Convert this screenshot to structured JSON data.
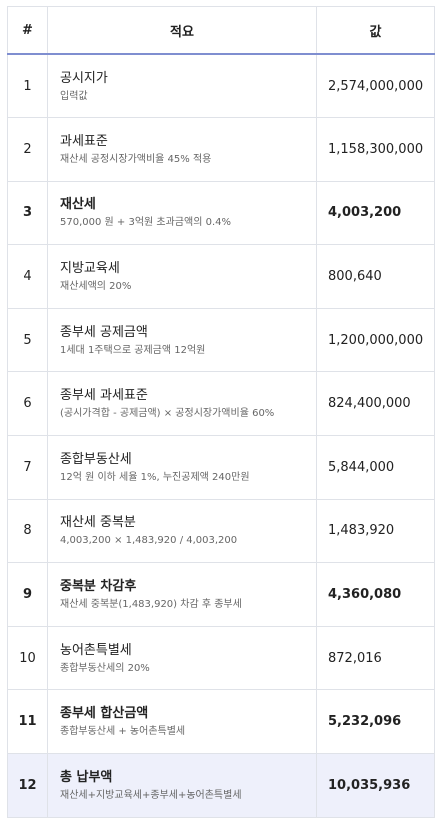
{
  "header": {
    "num": "#",
    "description": "적요",
    "value": "값"
  },
  "rows": [
    {
      "num": "1",
      "title": "공시지가",
      "sub": "입력값",
      "value": "2,574,000,000",
      "bold": false
    },
    {
      "num": "2",
      "title": "과세표준",
      "sub": "재산세 공정시장가액비율 45% 적용",
      "value": "1,158,300,000",
      "bold": false
    },
    {
      "num": "3",
      "title": "재산세",
      "sub": "570,000 원 + 3억원 초과금액의 0.4%",
      "value": "4,003,200",
      "bold": true
    },
    {
      "num": "4",
      "title": "지방교육세",
      "sub": "재산세액의 20%",
      "value": "800,640",
      "bold": false
    },
    {
      "num": "5",
      "title": "종부세 공제금액",
      "sub": "1세대 1주택으로 공제금액 12억원",
      "value": "1,200,000,000",
      "bold": false
    },
    {
      "num": "6",
      "title": "종부세 과세표준",
      "sub": "(공시가격합 - 공제금액) × 공정시장가액비율 60%",
      "value": "824,400,000",
      "bold": false
    },
    {
      "num": "7",
      "title": "종합부동산세",
      "sub": "12억 원 이하 세율 1%, 누진공제액 240만원",
      "value": "5,844,000",
      "bold": false
    },
    {
      "num": "8",
      "title": "재산세 중복분",
      "sub": "4,003,200 × 1,483,920 / 4,003,200",
      "value": "1,483,920",
      "bold": false
    },
    {
      "num": "9",
      "title": "중복분 차감후",
      "sub": "재산세 중복분(1,483,920) 차감 후 종부세",
      "value": "4,360,080",
      "bold": true
    },
    {
      "num": "10",
      "title": "농어촌특별세",
      "sub": "종합부동산세의 20%",
      "value": "872,016",
      "bold": false
    },
    {
      "num": "11",
      "title": "종부세 합산금액",
      "sub": "종합부동산세 + 농어촌특별세",
      "value": "5,232,096",
      "bold": true
    },
    {
      "num": "12",
      "title": "총 납부액",
      "sub": "재산세+지방교육세+종부세+농어촌특별세",
      "value": "10,035,936",
      "bold": true,
      "highlight": true
    }
  ],
  "colors": {
    "header_rule": "#7f8ed0",
    "grid": "#dfe2e8",
    "highlight_row": "#eef0fb",
    "sub_text": "#666666"
  }
}
